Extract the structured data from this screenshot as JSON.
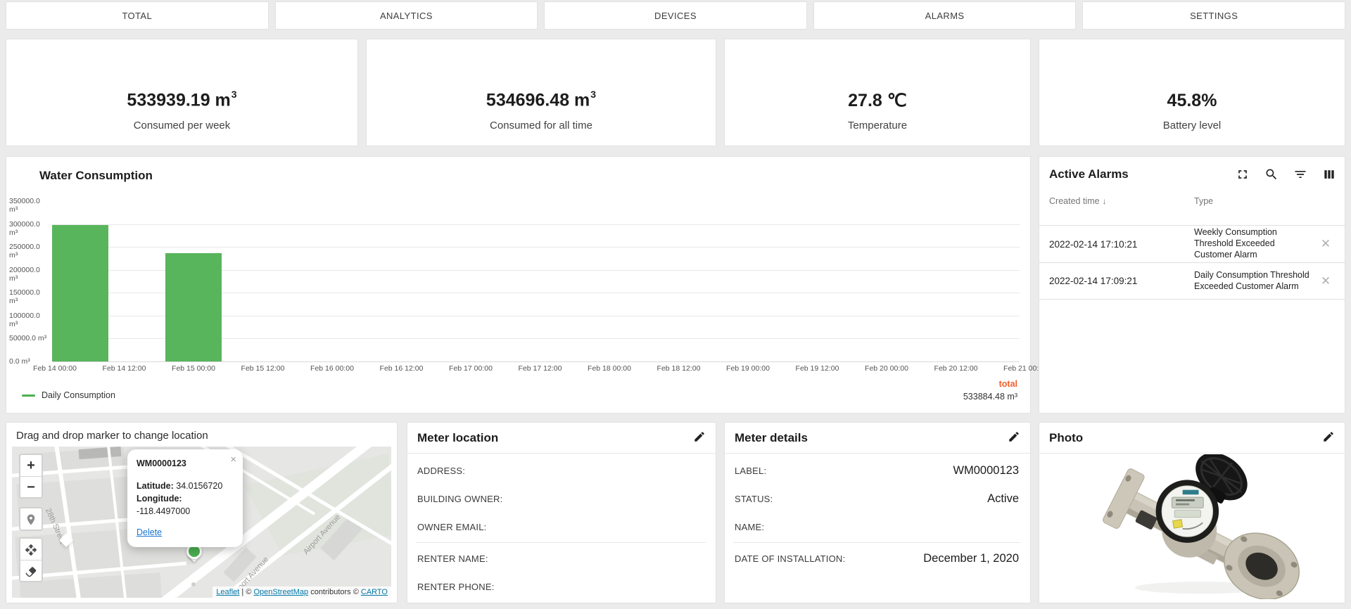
{
  "colors": {
    "bar_green": "#58b55c",
    "legend_green": "#4caf50",
    "total_orange": "#f15e2c",
    "delete_blue": "#1976d2",
    "attribution_blue": "#0078a8"
  },
  "tabs": [
    "TOTAL",
    "ANALYTICS",
    "DEVICES",
    "ALARMS",
    "SETTINGS"
  ],
  "stats": [
    {
      "value": "533939.19 m",
      "sup": "3",
      "label": "Consumed per week"
    },
    {
      "value": "534696.48 m",
      "sup": "3",
      "label": "Consumed for all time"
    },
    {
      "value": "27.8 ℃",
      "sup": "",
      "label": "Temperature"
    },
    {
      "value": "45.8%",
      "sup": "",
      "label": "Battery level"
    }
  ],
  "chart_data": {
    "type": "bar",
    "title": "Water Consumption",
    "xlabel": "",
    "ylabel": "",
    "ylim": [
      0,
      350000
    ],
    "grid": true,
    "y_ticks": [
      "350000.0 m³",
      "300000.0 m³",
      "250000.0 m³",
      "200000.0 m³",
      "150000.0 m³",
      "100000.0 m³",
      "50000.0 m³",
      "0.0 m³"
    ],
    "x_ticks": [
      "Feb 14 00:00",
      "Feb 14 12:00",
      "Feb 15 00:00",
      "Feb 15 12:00",
      "Feb 16 00:00",
      "Feb 16 12:00",
      "Feb 17 00:00",
      "Feb 17 12:00",
      "Feb 18 00:00",
      "Feb 18 12:00",
      "Feb 19 00:00",
      "Feb 19 12:00",
      "Feb 20 00:00",
      "Feb 20 12:00",
      "Feb 21 00:00"
    ],
    "legend": [
      {
        "name": "Daily Consumption",
        "color": "#4caf50"
      }
    ],
    "series": [
      {
        "name": "Daily Consumption",
        "color": "#58b55c",
        "bars": [
          {
            "x": "Feb 14",
            "tick_pos": 0.37,
            "value": 297404
          },
          {
            "x": "Feb 15",
            "tick_pos": 2.0,
            "value": 236480
          }
        ]
      }
    ],
    "total": {
      "label": "total",
      "value": "533884.48 m³"
    },
    "legend_position": "bottom-left"
  },
  "alarms": {
    "title": "Active Alarms",
    "sort_icon": "↓",
    "columns": [
      "Created time",
      "Type"
    ],
    "rows": [
      {
        "time": "2022-02-14 17:10:21",
        "type": "Weekly Consumption Threshold Exceeded Customer Alarm"
      },
      {
        "time": "2022-02-14 17:09:21",
        "type": "Daily Consumption Threshold Exceeded Customer Alarm"
      }
    ]
  },
  "map": {
    "title": "Drag and drop marker to change location",
    "zoom_in": "+",
    "zoom_out": "−",
    "popup": {
      "title": "WM0000123",
      "latitude_label": "Latitude:",
      "latitude_value": "34.0156720",
      "longitude_label": "Longitude:",
      "longitude_value": "-118.4497000",
      "delete_label": "Delete",
      "close": "×"
    },
    "marker_label": "WM0000123",
    "street_labels": [
      "28th Street",
      "Airport Avenue",
      "Airport Avenue"
    ],
    "attribution": {
      "leaflet": "Leaflet",
      "sep1": " | © ",
      "osm": "OpenStreetMap",
      "sep2": " contributors © ",
      "carto": "CARTO"
    }
  },
  "meter_location": {
    "title": "Meter location",
    "fields": [
      {
        "label": "ADDRESS:",
        "value": ""
      },
      {
        "label": "BUILDING OWNER:",
        "value": ""
      },
      {
        "label": "OWNER EMAIL:",
        "value": "",
        "divider_after": true
      },
      {
        "label": "RENTER NAME:",
        "value": ""
      },
      {
        "label": "RENTER PHONE:",
        "value": ""
      }
    ]
  },
  "meter_details": {
    "title": "Meter details",
    "fields": [
      {
        "label": "LABEL:",
        "value": "WM0000123"
      },
      {
        "label": "STATUS:",
        "value": "Active"
      },
      {
        "label": "NAME:",
        "value": "",
        "divider_after": true
      },
      {
        "label": "DATE OF INSTALLATION:",
        "value": "December 1, 2020"
      }
    ]
  },
  "photo": {
    "title": "Photo"
  }
}
